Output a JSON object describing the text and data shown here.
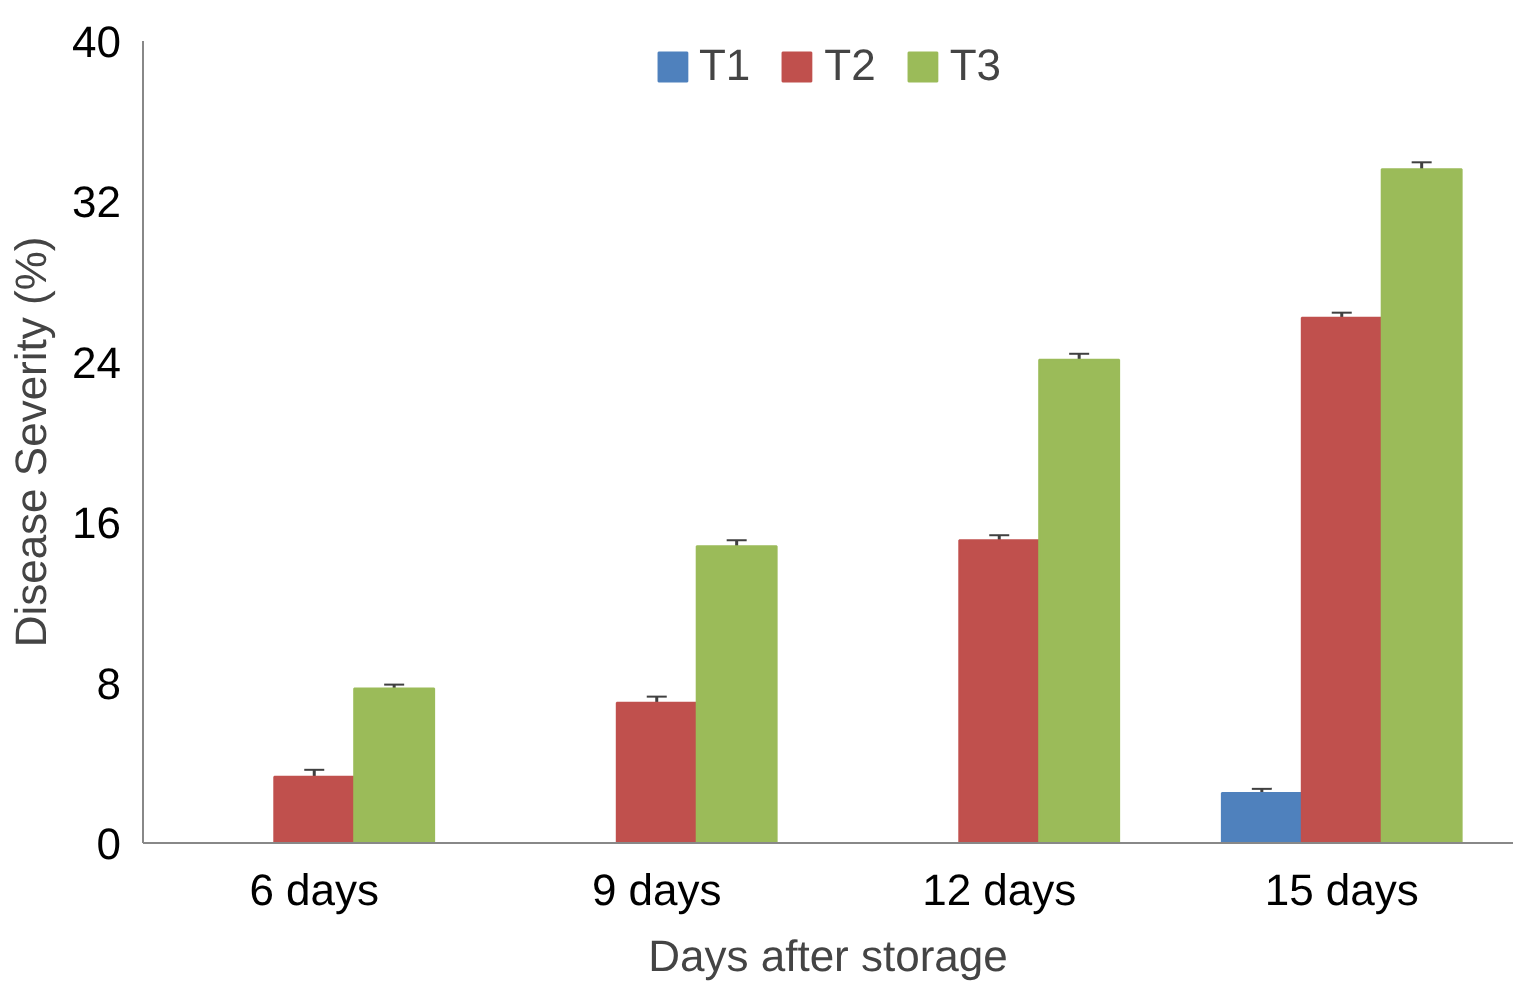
{
  "chart_data": {
    "type": "bar",
    "xlabel": "Days after storage",
    "ylabel": "Disease Severity (%)",
    "categories": [
      "6 days",
      "9 days",
      "12 days",
      "15 days"
    ],
    "series": [
      {
        "name": "T1",
        "color": "#4f81bd",
        "values": [
          0,
          0,
          0,
          2.5
        ],
        "errors": [
          null,
          null,
          null,
          0.2
        ]
      },
      {
        "name": "T2",
        "color": "#c0504d",
        "values": [
          3.3,
          7.0,
          15.1,
          26.2
        ],
        "errors": [
          0.35,
          0.3,
          0.25,
          0.25
        ]
      },
      {
        "name": "T3",
        "color": "#9bbb59",
        "values": [
          7.7,
          14.8,
          24.1,
          33.6
        ],
        "errors": [
          0.2,
          0.3,
          0.3,
          0.35
        ]
      }
    ],
    "ylim": [
      0,
      40
    ],
    "yticks": [
      0,
      8,
      16,
      24,
      32,
      40
    ],
    "grid": false,
    "legend": "top"
  }
}
